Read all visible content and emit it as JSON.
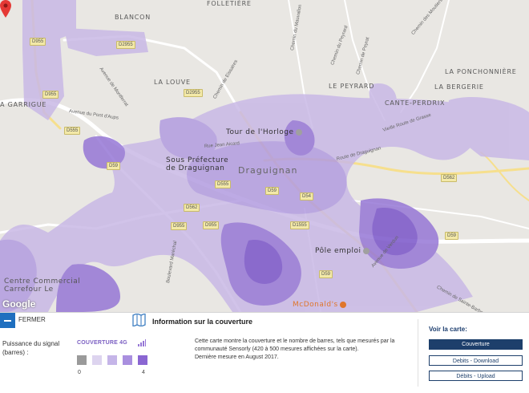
{
  "map": {
    "places": {
      "folletiere": "FOLLETIÈRE",
      "blancon": "BLANCON",
      "la_louve": "LA LOUVE",
      "le_peyrard": "LE PEYRARD",
      "la_ponchonniere": "LA PONCHONNIÈRE",
      "la_bergerie": "LA BERGERIE",
      "cante_perdrix": "CANTE-PERDRIX",
      "garrigue": "A GARRIGUE",
      "draguignan": "Draguignan"
    },
    "pois": {
      "tour_horloge": "Tour de l'Horloge",
      "sous_prefecture_1": "Sous Préfecture",
      "sous_prefecture_2": "de Draguignan",
      "pole_emploi": "Pôle emploi",
      "centre_commercial_1": "Centre Commercial",
      "centre_commercial_2": "Carrefour Le",
      "mcdonalds": "McDonald's"
    },
    "roads": {
      "d955_top": "D955",
      "d2955_a": "D2955",
      "d2955_b": "D2955",
      "d955_left": "D955",
      "d555_left": "D555",
      "d59_a": "D59",
      "d59_b": "D59",
      "d555_b": "D555",
      "d562_a": "D562",
      "d562_b": "D562",
      "d59_right": "D59",
      "d1555": "D1555",
      "d54": "D54",
      "d955_c": "D955",
      "d955_d": "D955",
      "d59_low": "D59"
    },
    "streets": {
      "pont_aups": "Avenue du Pont d'Aups",
      "chemin_eissaires": "Chemin de Eissaires",
      "route_lorgues": "Route de Draguignan",
      "vieille_route": "Vieille Route de Grasse",
      "chemin_peyrard": "Chemin du Peyrard",
      "chemin_fornas": "Chemin du Mauvallon",
      "chemin_peyrat": "Chemin de Peyrat",
      "chemin_moutiers": "Chemin des Moutiers",
      "avenue_montferrat": "Avenue de Montferrat",
      "jean_aicard": "Rue Jean Aicard",
      "ave_verdun": "Avenue de Verdun",
      "sainte_barbe": "Chemin de Sainte-Barbe",
      "boulevard": "Boulevard Maréchal"
    },
    "google_logo": "Google",
    "colors": {
      "coverage_light": "#c9b9e6",
      "coverage_mid": "#b29ce0",
      "coverage_dark": "#9677d6",
      "coverage_darker": "#7a55c9",
      "road_major": "#f6df8d",
      "marker": "#e53935"
    }
  },
  "panel": {
    "close_label": "FERMER",
    "legend_label": "Puissance du signal (barres) :",
    "legend_title": "COUVERTURE 4G",
    "legend_colors": [
      "#9a9a9a",
      "#ddd4ef",
      "#c5b5e8",
      "#a98fdf",
      "#8a66d2"
    ],
    "legend_min": "0",
    "legend_max": "4",
    "info_title": "Information sur la couverture",
    "info_text_1": "Cette carte montre la couverture et le nombre de barres, tels que mesurés par la communauté Sensorly (420 à 500 mesures affichées sur la carte).",
    "info_text_2": "Dernière mesure en August 2017.",
    "voir_title": "Voir la carte:",
    "buttons": [
      {
        "label": "Couverture",
        "active": true
      },
      {
        "label": "Debits - Download",
        "active": false
      },
      {
        "label": "Débits - Upload",
        "active": false
      }
    ]
  }
}
